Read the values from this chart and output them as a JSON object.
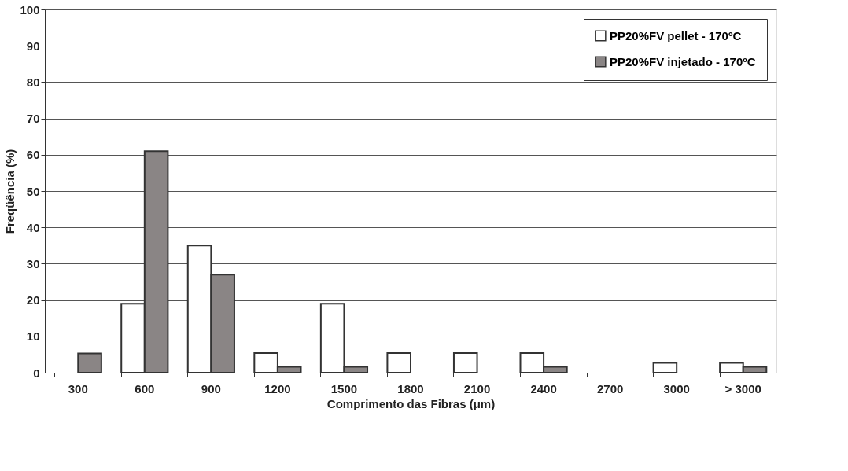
{
  "chart_data": {
    "type": "bar",
    "xlabel": "Comprimento das Fibras (μm)",
    "ylabel": "Freqüência (%)",
    "categories": [
      "300",
      "600",
      "900",
      "1200",
      "1500",
      "1800",
      "2100",
      "2400",
      "2700",
      "3000",
      "> 3000"
    ],
    "series": [
      {
        "name": "PP20%FV pellet - 170ºC",
        "color": "#ffffff",
        "values": [
          null,
          19,
          35,
          5.4,
          19,
          5.4,
          5.4,
          5.4,
          null,
          2.7,
          2.7
        ]
      },
      {
        "name": "PP20%FV injetado - 170ºC",
        "color": "#8a8585",
        "values": [
          5.3,
          61,
          27,
          1.6,
          1.6,
          null,
          null,
          1.6,
          null,
          null,
          1.6
        ]
      }
    ],
    "ylim": [
      0,
      100
    ],
    "yticks": [
      0,
      10,
      20,
      30,
      40,
      50,
      60,
      70,
      80,
      90,
      100
    ],
    "grid": "y",
    "legend": "top right"
  }
}
